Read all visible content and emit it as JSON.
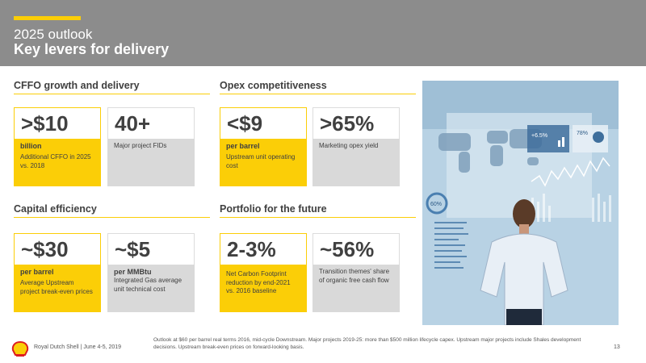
{
  "header": {
    "subtitle": "2025 outlook",
    "title": "Key levers for delivery"
  },
  "sections": {
    "cffo": "CFFO growth and delivery",
    "opex": "Opex competitiveness",
    "capital": "Capital efficiency",
    "portfolio": "Portfolio for the future"
  },
  "cards": {
    "cffo_billion": {
      "value": ">$10",
      "unit": "billion",
      "desc": "Additional CFFO in 2025 vs. 2018"
    },
    "project_fids": {
      "value": "40+",
      "desc": "Major project FIDs"
    },
    "opex_barrel": {
      "value": "<$9",
      "unit": "per barrel",
      "desc": "Upstream unit operating cost"
    },
    "marketing_yield": {
      "value": ">65%",
      "desc": "Marketing opex yield"
    },
    "breakeven": {
      "value": "~$30",
      "unit": "per barrel",
      "desc": "Average Upstream project break-even prices"
    },
    "gas_cost": {
      "value": "~$5",
      "unit": "per MMBtu",
      "desc": "Integrated Gas average unit technical cost"
    },
    "carbon": {
      "value": "2-3%",
      "desc": "Net Carbon Footprint reduction by end-2021 vs. 2016 baseline"
    },
    "transition": {
      "value": "~56%",
      "desc": "Transition themes' share of organic free cash flow"
    }
  },
  "photo": {
    "overlay_pct_1": "+6.5%",
    "overlay_pct_2": "78%",
    "overlay_pct_3": "60%"
  },
  "footer": {
    "company": "Royal Dutch Shell | June 4-5, 2019",
    "note": "Outlook at $60 per barrel real terms 2016, mid-cycle Downstream. Major projects 2019-25: more than $500 million lifecycle capex. Upstream major projects include Shales development decisions. Upstream break-even prices on forward-looking basis.",
    "page": "13"
  },
  "colors": {
    "accent": "#fbce07",
    "header_bg": "#8c8c8c",
    "card_grey": "#d9d9d9"
  }
}
